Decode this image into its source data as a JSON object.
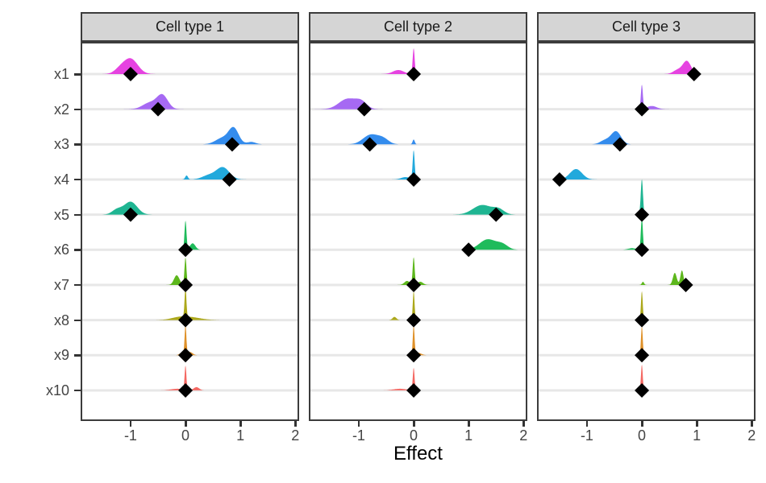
{
  "chart_data": {
    "type": "area",
    "subtype": "faceted ridgeline densities with point estimates (diamonds)",
    "title": "",
    "xlabel": "Effect",
    "ylabel": "",
    "x_ticks": [
      -1,
      0,
      1,
      2
    ],
    "x_domain": [
      -1.91,
      2.07
    ],
    "grid": "horizontal-only",
    "legend": "none",
    "style": {
      "strip_bg": "#D5D5D5",
      "strip_text": "#1A1A1A",
      "border": "#3C3C3C",
      "gridline": "#E7E7E7",
      "point": "#000000",
      "background": "#FFFFFF",
      "axis_text": "#454545"
    },
    "variables": [
      {
        "name": "x1",
        "color": "#E53BE0"
      },
      {
        "name": "x2",
        "color": "#A263F2"
      },
      {
        "name": "x3",
        "color": "#2C87EC"
      },
      {
        "name": "x4",
        "color": "#19A6DB"
      },
      {
        "name": "x5",
        "color": "#16B28E"
      },
      {
        "name": "x6",
        "color": "#16B854"
      },
      {
        "name": "x7",
        "color": "#56B413"
      },
      {
        "name": "x8",
        "color": "#A9A411"
      },
      {
        "name": "x9",
        "color": "#DE8C20"
      },
      {
        "name": "x10",
        "color": "#F4625C"
      }
    ],
    "facets": [
      {
        "label": "Cell type 1",
        "rows": [
          {
            "var": "x1",
            "point": -1.0,
            "density": [
              {
                "m": -1.0,
                "s": 0.13,
                "a": 19
              },
              {
                "m": -1.2,
                "s": 0.1,
                "a": 5
              }
            ]
          },
          {
            "var": "x2",
            "point": -0.5,
            "density": [
              {
                "m": -0.42,
                "s": 0.1,
                "a": 17
              },
              {
                "m": -0.65,
                "s": 0.13,
                "a": 8
              }
            ]
          },
          {
            "var": "x3",
            "point": 0.85,
            "density": [
              {
                "m": 0.88,
                "s": 0.09,
                "a": 19
              },
              {
                "m": 0.68,
                "s": 0.13,
                "a": 8
              },
              {
                "m": 1.2,
                "s": 0.08,
                "a": 3
              }
            ]
          },
          {
            "var": "x4",
            "point": 0.8,
            "density": [
              {
                "m": 0.68,
                "s": 0.12,
                "a": 15
              },
              {
                "m": 0.42,
                "s": 0.12,
                "a": 5
              },
              {
                "m": 0.02,
                "s": 0.025,
                "a": 5
              }
            ]
          },
          {
            "var": "x5",
            "point": -1.0,
            "density": [
              {
                "m": -1.0,
                "s": 0.12,
                "a": 16
              },
              {
                "m": -1.25,
                "s": 0.09,
                "a": 6
              }
            ]
          },
          {
            "var": "x6",
            "point": 0.0,
            "density": [
              {
                "m": 0,
                "s": 0.018,
                "a": 36
              },
              {
                "m": 0.13,
                "s": 0.05,
                "a": 8
              }
            ]
          },
          {
            "var": "x7",
            "point": 0.0,
            "density": [
              {
                "m": 0,
                "s": 0.018,
                "a": 34
              },
              {
                "m": -0.16,
                "s": 0.05,
                "a": 12
              }
            ]
          },
          {
            "var": "x8",
            "point": 0.0,
            "density": [
              {
                "m": 0,
                "s": 0.016,
                "a": 37
              },
              {
                "m": 0.12,
                "s": 0.18,
                "a": 3
              },
              {
                "m": -0.12,
                "s": 0.15,
                "a": 3
              }
            ]
          },
          {
            "var": "x9",
            "point": 0.0,
            "density": [
              {
                "m": 0,
                "s": 0.016,
                "a": 36
              },
              {
                "m": 0.08,
                "s": 0.05,
                "a": 4
              },
              {
                "m": -0.07,
                "s": 0.04,
                "a": 3
              }
            ]
          },
          {
            "var": "x10",
            "point": 0.0,
            "density": [
              {
                "m": 0,
                "s": 0.016,
                "a": 30
              },
              {
                "m": 0.2,
                "s": 0.05,
                "a": 4
              },
              {
                "m": -0.15,
                "s": 0.12,
                "a": 2
              }
            ]
          }
        ]
      },
      {
        "label": "Cell type 2",
        "rows": [
          {
            "var": "x1",
            "point": 0.0,
            "density": [
              {
                "m": 0,
                "s": 0.018,
                "a": 32
              },
              {
                "m": -0.28,
                "s": 0.1,
                "a": 5
              }
            ]
          },
          {
            "var": "x2",
            "point": -0.9,
            "density": [
              {
                "m": -1.2,
                "s": 0.16,
                "a": 13
              },
              {
                "m": -0.95,
                "s": 0.1,
                "a": 8
              }
            ]
          },
          {
            "var": "x3",
            "point": -0.8,
            "density": [
              {
                "m": -0.78,
                "s": 0.14,
                "a": 12
              },
              {
                "m": -0.55,
                "s": 0.1,
                "a": 6
              },
              {
                "m": 0,
                "s": 0.02,
                "a": 6
              }
            ]
          },
          {
            "var": "x4",
            "point": 0.0,
            "density": [
              {
                "m": 0,
                "s": 0.018,
                "a": 36
              },
              {
                "m": -0.15,
                "s": 0.08,
                "a": 3
              }
            ]
          },
          {
            "var": "x5",
            "point": 1.5,
            "density": [
              {
                "m": 1.25,
                "s": 0.17,
                "a": 12
              },
              {
                "m": 1.55,
                "s": 0.1,
                "a": 6
              }
            ]
          },
          {
            "var": "x6",
            "point": 1.0,
            "density": [
              {
                "m": 1.35,
                "s": 0.15,
                "a": 13
              },
              {
                "m": 1.62,
                "s": 0.1,
                "a": 6
              }
            ]
          },
          {
            "var": "x7",
            "point": 0.0,
            "density": [
              {
                "m": 0,
                "s": 0.018,
                "a": 34
              },
              {
                "m": -0.12,
                "s": 0.05,
                "a": 5
              },
              {
                "m": 0.12,
                "s": 0.05,
                "a": 4
              }
            ]
          },
          {
            "var": "x8",
            "point": 0.0,
            "density": [
              {
                "m": 0,
                "s": 0.016,
                "a": 36
              },
              {
                "m": -0.35,
                "s": 0.035,
                "a": 4
              }
            ]
          },
          {
            "var": "x9",
            "point": 0.0,
            "density": [
              {
                "m": 0,
                "s": 0.016,
                "a": 36
              },
              {
                "m": 0.08,
                "s": 0.06,
                "a": 3
              }
            ]
          },
          {
            "var": "x10",
            "point": 0.0,
            "density": [
              {
                "m": 0,
                "s": 0.016,
                "a": 28
              },
              {
                "m": -0.25,
                "s": 0.12,
                "a": 2
              }
            ]
          }
        ]
      },
      {
        "label": "Cell type 3",
        "rows": [
          {
            "var": "x1",
            "point": 0.95,
            "density": [
              {
                "m": 0.82,
                "s": 0.075,
                "a": 16
              },
              {
                "m": 0.65,
                "s": 0.08,
                "a": 5
              }
            ]
          },
          {
            "var": "x2",
            "point": 0.0,
            "density": [
              {
                "m": 0,
                "s": 0.018,
                "a": 30
              },
              {
                "m": 0.18,
                "s": 0.09,
                "a": 4
              }
            ]
          },
          {
            "var": "x3",
            "point": -0.4,
            "density": [
              {
                "m": -0.47,
                "s": 0.09,
                "a": 16
              },
              {
                "m": -0.67,
                "s": 0.09,
                "a": 5
              }
            ]
          },
          {
            "var": "x4",
            "point": -1.5,
            "density": [
              {
                "m": -1.2,
                "s": 0.11,
                "a": 13
              }
            ]
          },
          {
            "var": "x5",
            "point": 0.0,
            "density": [
              {
                "m": 0,
                "s": 0.02,
                "a": 44
              }
            ]
          },
          {
            "var": "x6",
            "point": 0.0,
            "density": [
              {
                "m": 0,
                "s": 0.018,
                "a": 40
              },
              {
                "m": -0.18,
                "s": 0.07,
                "a": 2
              }
            ]
          },
          {
            "var": "x7",
            "point": 0.8,
            "density": [
              {
                "m": 0.6,
                "s": 0.035,
                "a": 15
              },
              {
                "m": 0.73,
                "s": 0.028,
                "a": 18
              },
              {
                "m": 0.02,
                "s": 0.02,
                "a": 4
              }
            ]
          },
          {
            "var": "x8",
            "point": 0.0,
            "density": [
              {
                "m": 0,
                "s": 0.016,
                "a": 36
              }
            ]
          },
          {
            "var": "x9",
            "point": 0.0,
            "density": [
              {
                "m": 0,
                "s": 0.016,
                "a": 36
              }
            ]
          },
          {
            "var": "x10",
            "point": 0.0,
            "density": [
              {
                "m": 0,
                "s": 0.016,
                "a": 32
              }
            ]
          }
        ]
      }
    ]
  }
}
